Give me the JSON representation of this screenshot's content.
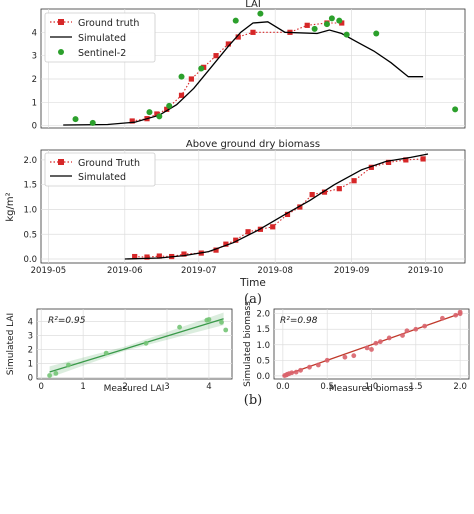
{
  "panel_a_label": "(a)",
  "panel_b_label": "(b)",
  "colors": {
    "truth": "#d62728",
    "sim": "#000000",
    "s2": "#2ca02c",
    "lai_scatter": "#74c476",
    "lai_line": "#3a9a4a",
    "bio_scatter": "#d9636b",
    "bio_line": "#c0392b"
  },
  "chart_data": [
    {
      "id": "lai_timeseries",
      "type": "line",
      "title": "LAI",
      "xlabel": "",
      "ylabel": "",
      "xlim": [
        "2019-04-28",
        "2019-10-17"
      ],
      "ylim": [
        -0.1,
        5.0
      ],
      "yticks": [
        0,
        1,
        2,
        3,
        4
      ],
      "grid": true,
      "legend": {
        "position": "top-left",
        "entries": [
          "Ground truth",
          "Simulated",
          "Sentinel-2"
        ]
      },
      "series": [
        {
          "name": "Ground truth",
          "style": "red-square-dotted",
          "x": [
            "2019-06-04",
            "2019-06-10",
            "2019-06-14",
            "2019-06-18",
            "2019-06-24",
            "2019-06-28",
            "2019-07-03",
            "2019-07-08",
            "2019-07-13",
            "2019-07-17",
            "2019-07-23",
            "2019-08-07",
            "2019-08-14",
            "2019-08-22",
            "2019-08-28"
          ],
          "y": [
            0.2,
            0.3,
            0.5,
            0.7,
            1.3,
            2.0,
            2.5,
            3.0,
            3.5,
            3.8,
            4.0,
            4.0,
            4.3,
            4.4,
            4.4
          ]
        },
        {
          "name": "Simulated",
          "style": "black-line",
          "x": [
            "2019-05-07",
            "2019-05-25",
            "2019-06-05",
            "2019-06-15",
            "2019-06-22",
            "2019-06-29",
            "2019-07-06",
            "2019-07-13",
            "2019-07-18",
            "2019-07-23",
            "2019-07-29",
            "2019-08-05",
            "2019-08-18",
            "2019-08-23",
            "2019-08-28",
            "2019-09-03",
            "2019-09-10",
            "2019-09-17",
            "2019-09-24",
            "2019-09-30"
          ],
          "y": [
            0.03,
            0.05,
            0.15,
            0.45,
            0.9,
            1.6,
            2.5,
            3.4,
            4.0,
            4.4,
            4.45,
            4.0,
            3.95,
            4.1,
            3.95,
            3.6,
            3.2,
            2.7,
            2.1,
            2.1
          ]
        },
        {
          "name": "Sentinel-2",
          "style": "green-dot",
          "x": [
            "2019-05-12",
            "2019-05-19",
            "2019-06-11",
            "2019-06-15",
            "2019-06-19",
            "2019-06-24",
            "2019-07-02",
            "2019-07-16",
            "2019-07-26",
            "2019-08-17",
            "2019-08-22",
            "2019-08-24",
            "2019-08-27",
            "2019-08-30",
            "2019-09-11",
            "2019-10-13"
          ],
          "y": [
            0.28,
            0.12,
            0.58,
            0.4,
            0.85,
            2.1,
            2.45,
            4.5,
            4.8,
            4.15,
            4.35,
            4.6,
            4.5,
            3.9,
            3.95,
            0.7
          ]
        }
      ]
    },
    {
      "id": "biomass_timeseries",
      "type": "line",
      "title": "Above ground dry biomass",
      "xlabel": "Time",
      "ylabel": "kg/m²",
      "xlim": [
        "2019-04-28",
        "2019-10-17"
      ],
      "ylim": [
        -0.08,
        2.2
      ],
      "yticks": [
        0.0,
        0.5,
        1.0,
        1.5,
        2.0
      ],
      "ytick_labels": [
        "0.0",
        "0.5",
        "1.0",
        "1.5",
        "2.0"
      ],
      "xticks": [
        "2019-05-01",
        "2019-06-01",
        "2019-07-01",
        "2019-08-01",
        "2019-09-01",
        "2019-10-01"
      ],
      "xtick_labels": [
        "2019-05",
        "2019-06",
        "2019-07",
        "2019-08",
        "2019-09",
        "2019-10"
      ],
      "grid": true,
      "legend": {
        "position": "top-left",
        "entries": [
          "Ground Truth",
          "Simulated"
        ]
      },
      "series": [
        {
          "name": "Ground Truth",
          "style": "red-square-dotted",
          "x": [
            "2019-06-05",
            "2019-06-10",
            "2019-06-15",
            "2019-06-20",
            "2019-06-25",
            "2019-07-02",
            "2019-07-08",
            "2019-07-12",
            "2019-07-16",
            "2019-07-21",
            "2019-07-26",
            "2019-07-31",
            "2019-08-06",
            "2019-08-11",
            "2019-08-16",
            "2019-08-21",
            "2019-08-27",
            "2019-09-02",
            "2019-09-09",
            "2019-09-16",
            "2019-09-23",
            "2019-09-30"
          ],
          "y": [
            0.05,
            0.04,
            0.06,
            0.05,
            0.1,
            0.12,
            0.18,
            0.3,
            0.38,
            0.55,
            0.6,
            0.65,
            0.9,
            1.05,
            1.3,
            1.35,
            1.42,
            1.58,
            1.85,
            1.95,
            2.0,
            2.02
          ]
        },
        {
          "name": "Simulated",
          "style": "black-line",
          "x": [
            "2019-06-01",
            "2019-06-15",
            "2019-06-25",
            "2019-07-05",
            "2019-07-15",
            "2019-07-25",
            "2019-08-05",
            "2019-08-15",
            "2019-08-25",
            "2019-09-05",
            "2019-09-15",
            "2019-09-25",
            "2019-10-02"
          ],
          "y": [
            0.0,
            0.02,
            0.07,
            0.15,
            0.33,
            0.58,
            0.9,
            1.18,
            1.5,
            1.8,
            1.97,
            2.05,
            2.12
          ]
        }
      ]
    },
    {
      "id": "lai_scatter",
      "type": "scatter",
      "xlabel": "Measured LAI",
      "ylabel": "Simulated LAI",
      "annotation": "R²=0.95",
      "xlim": [
        -0.1,
        4.55
      ],
      "ylim": [
        -0.1,
        4.9
      ],
      "xticks": [
        0,
        1,
        2,
        3,
        4
      ],
      "yticks": [
        0,
        1,
        2,
        3,
        4
      ],
      "grid": true,
      "fit_line": {
        "x": [
          0.2,
          4.35
        ],
        "y": [
          0.4,
          4.2
        ]
      },
      "confidence_band": {
        "x": [
          0.2,
          2.0,
          4.35
        ],
        "lower": [
          0.0,
          1.92,
          3.75
        ],
        "upper": [
          0.8,
          2.22,
          4.65
        ]
      },
      "points": {
        "x": [
          0.2,
          0.35,
          0.65,
          1.55,
          2.5,
          3.3,
          3.95,
          4.0,
          4.3,
          4.4
        ],
        "y": [
          0.15,
          0.3,
          0.9,
          1.75,
          2.45,
          3.6,
          4.1,
          4.15,
          3.95,
          3.4
        ]
      }
    },
    {
      "id": "biomass_scatter",
      "type": "scatter",
      "xlabel": "Measured biomass",
      "ylabel": "Simulated biomass",
      "annotation": "R²=0.98",
      "xlim": [
        -0.1,
        2.1
      ],
      "ylim": [
        -0.1,
        2.15
      ],
      "xticks": [
        0.0,
        0.5,
        1.0,
        1.5,
        2.0
      ],
      "xtick_labels": [
        "0.0",
        "0.5",
        "1.0",
        "1.5",
        "2.0"
      ],
      "yticks": [
        0.0,
        0.5,
        1.0,
        1.5,
        2.0
      ],
      "ytick_labels": [
        "0.0",
        "0.5",
        "1.0",
        "1.5",
        "2.0"
      ],
      "grid": true,
      "fit_line": {
        "x": [
          0.0,
          2.0
        ],
        "y": [
          0.0,
          2.0
        ]
      },
      "points": {
        "x": [
          0.02,
          0.04,
          0.05,
          0.07,
          0.1,
          0.15,
          0.2,
          0.3,
          0.4,
          0.5,
          0.7,
          0.8,
          0.95,
          1.0,
          1.05,
          1.1,
          1.2,
          1.35,
          1.4,
          1.5,
          1.6,
          1.8,
          1.95,
          2.0,
          2.0
        ],
        "y": [
          0.01,
          0.03,
          0.05,
          0.07,
          0.1,
          0.12,
          0.18,
          0.28,
          0.35,
          0.5,
          0.6,
          0.65,
          0.9,
          0.85,
          1.05,
          1.1,
          1.22,
          1.3,
          1.45,
          1.5,
          1.6,
          1.85,
          1.95,
          2.05,
          2.0
        ]
      }
    }
  ]
}
